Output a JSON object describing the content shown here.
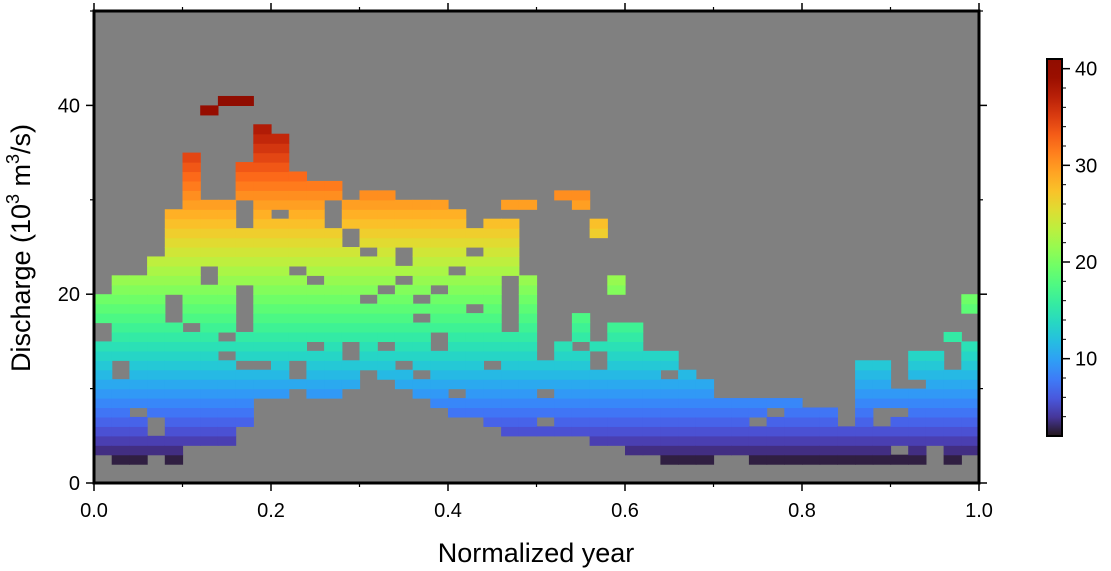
{
  "chart_data": {
    "type": "heatmap",
    "title": "",
    "xlabel": "Normalized year",
    "ylabel_parts": [
      "Discharge (10",
      "3",
      " m",
      "3",
      "/s)"
    ],
    "xlim": [
      0,
      1
    ],
    "ylim": [
      0,
      50
    ],
    "x_ticks": [
      "0.0",
      "0.2",
      "0.4",
      "0.6",
      "0.8",
      "1.0"
    ],
    "x_tick_values": [
      0,
      0.2,
      0.4,
      0.6,
      0.8,
      1.0
    ],
    "y_ticks": [
      "0",
      "20",
      "40"
    ],
    "y_tick_values": [
      0,
      20,
      40
    ],
    "x_bin_width": 0.02,
    "y_bin_width": 1,
    "background_color": "#808080",
    "colorbar": {
      "range": [
        2,
        41
      ],
      "ticks": [
        "10",
        "20",
        "30",
        "40"
      ],
      "tick_values": [
        10,
        20,
        30,
        40
      ],
      "colormap": "turbo"
    },
    "columns": [
      {
        "x": 0.0,
        "ymin": 3,
        "ymax": 20
      },
      {
        "x": 0.02,
        "ymin": 2,
        "ymax": 22
      },
      {
        "x": 0.04,
        "ymin": 2,
        "ymax": 22
      },
      {
        "x": 0.06,
        "ymin": 3,
        "ymax": 24
      },
      {
        "x": 0.08,
        "ymin": 2,
        "ymax": 29
      },
      {
        "x": 0.1,
        "ymin": 4,
        "ymax": 35
      },
      {
        "x": 0.12,
        "ymin": 4,
        "ymax": 40
      },
      {
        "x": 0.14,
        "ymin": 4,
        "ymax": 41
      },
      {
        "x": 0.16,
        "ymin": 6,
        "ymax": 41
      },
      {
        "x": 0.18,
        "ymin": 9,
        "ymax": 41
      },
      {
        "x": 0.2,
        "ymin": 9,
        "ymax": 37
      },
      {
        "x": 0.22,
        "ymin": 10,
        "ymax": 33
      },
      {
        "x": 0.24,
        "ymin": 9,
        "ymax": 32
      },
      {
        "x": 0.26,
        "ymin": 9,
        "ymax": 32
      },
      {
        "x": 0.28,
        "ymin": 10,
        "ymax": 30
      },
      {
        "x": 0.3,
        "ymin": 12,
        "ymax": 31
      },
      {
        "x": 0.32,
        "ymin": 11,
        "ymax": 31
      },
      {
        "x": 0.34,
        "ymin": 10,
        "ymax": 30
      },
      {
        "x": 0.36,
        "ymin": 9,
        "ymax": 30
      },
      {
        "x": 0.38,
        "ymin": 8,
        "ymax": 30
      },
      {
        "x": 0.4,
        "ymin": 7,
        "ymax": 29
      },
      {
        "x": 0.42,
        "ymin": 7,
        "ymax": 27
      },
      {
        "x": 0.44,
        "ymin": 6,
        "ymax": 28
      },
      {
        "x": 0.46,
        "ymin": 5,
        "ymax": 30
      },
      {
        "x": 0.48,
        "ymin": 5,
        "ymax": 30
      },
      {
        "x": 0.5,
        "ymin": 5,
        "ymax": 30
      },
      {
        "x": 0.52,
        "ymin": 5,
        "ymax": 31
      },
      {
        "x": 0.54,
        "ymin": 5,
        "ymax": 31
      },
      {
        "x": 0.56,
        "ymin": 4,
        "ymax": 28
      },
      {
        "x": 0.58,
        "ymin": 4,
        "ymax": 22
      },
      {
        "x": 0.6,
        "ymin": 3,
        "ymax": 17
      },
      {
        "x": 0.62,
        "ymin": 3,
        "ymax": 14
      },
      {
        "x": 0.64,
        "ymin": 2,
        "ymax": 14
      },
      {
        "x": 0.66,
        "ymin": 2,
        "ymax": 12
      },
      {
        "x": 0.68,
        "ymin": 2,
        "ymax": 11
      },
      {
        "x": 0.7,
        "ymin": 3,
        "ymax": 9
      },
      {
        "x": 0.72,
        "ymin": 3,
        "ymax": 9
      },
      {
        "x": 0.74,
        "ymin": 2,
        "ymax": 9
      },
      {
        "x": 0.76,
        "ymin": 2,
        "ymax": 9
      },
      {
        "x": 0.78,
        "ymin": 2,
        "ymax": 9
      },
      {
        "x": 0.8,
        "ymin": 2,
        "ymax": 8
      },
      {
        "x": 0.82,
        "ymin": 2,
        "ymax": 8
      },
      {
        "x": 0.84,
        "ymin": 2,
        "ymax": 7
      },
      {
        "x": 0.86,
        "ymin": 2,
        "ymax": 13
      },
      {
        "x": 0.88,
        "ymin": 2,
        "ymax": 13
      },
      {
        "x": 0.9,
        "ymin": 2,
        "ymax": 10
      },
      {
        "x": 0.92,
        "ymin": 2,
        "ymax": 14
      },
      {
        "x": 0.94,
        "ymin": 3,
        "ymax": 14
      },
      {
        "x": 0.96,
        "ymin": 2,
        "ymax": 16
      },
      {
        "x": 0.98,
        "ymin": 3,
        "ymax": 20
      }
    ],
    "gaps": [
      [
        0.0,
        15
      ],
      [
        0.0,
        16
      ],
      [
        0.02,
        11
      ],
      [
        0.02,
        12
      ],
      [
        0.04,
        7
      ],
      [
        0.06,
        6
      ],
      [
        0.06,
        5
      ],
      [
        0.08,
        17
      ],
      [
        0.08,
        18
      ],
      [
        0.08,
        19
      ],
      [
        0.1,
        16
      ],
      [
        0.12,
        21
      ],
      [
        0.12,
        22
      ],
      [
        0.12,
        30
      ],
      [
        0.12,
        31
      ],
      [
        0.12,
        32
      ],
      [
        0.12,
        33
      ],
      [
        0.12,
        34
      ],
      [
        0.12,
        35
      ],
      [
        0.12,
        36
      ],
      [
        0.12,
        37
      ],
      [
        0.12,
        38
      ],
      [
        0.14,
        13
      ],
      [
        0.14,
        15
      ],
      [
        0.14,
        30
      ],
      [
        0.14,
        31
      ],
      [
        0.14,
        32
      ],
      [
        0.14,
        33
      ],
      [
        0.14,
        34
      ],
      [
        0.14,
        35
      ],
      [
        0.14,
        36
      ],
      [
        0.14,
        37
      ],
      [
        0.14,
        38
      ],
      [
        0.14,
        39
      ],
      [
        0.16,
        12
      ],
      [
        0.16,
        16
      ],
      [
        0.16,
        17
      ],
      [
        0.16,
        18
      ],
      [
        0.16,
        19
      ],
      [
        0.16,
        20
      ],
      [
        0.16,
        27
      ],
      [
        0.16,
        28
      ],
      [
        0.16,
        29
      ],
      [
        0.16,
        34
      ],
      [
        0.16,
        35
      ],
      [
        0.16,
        36
      ],
      [
        0.16,
        37
      ],
      [
        0.16,
        38
      ],
      [
        0.16,
        39
      ],
      [
        0.18,
        12
      ],
      [
        0.18,
        38
      ],
      [
        0.18,
        39
      ],
      [
        0.18,
        40
      ],
      [
        0.2,
        28
      ],
      [
        0.22,
        11
      ],
      [
        0.22,
        12
      ],
      [
        0.22,
        22
      ],
      [
        0.24,
        14
      ],
      [
        0.24,
        21
      ],
      [
        0.26,
        27
      ],
      [
        0.26,
        28
      ],
      [
        0.26,
        29
      ],
      [
        0.28,
        13
      ],
      [
        0.28,
        14
      ],
      [
        0.28,
        25
      ],
      [
        0.28,
        26
      ],
      [
        0.3,
        19
      ],
      [
        0.3,
        24
      ],
      [
        0.32,
        14
      ],
      [
        0.32,
        20
      ],
      [
        0.34,
        12
      ],
      [
        0.34,
        21
      ],
      [
        0.34,
        23
      ],
      [
        0.34,
        24
      ],
      [
        0.36,
        19
      ],
      [
        0.36,
        17
      ],
      [
        0.36,
        11
      ],
      [
        0.38,
        20
      ],
      [
        0.38,
        14
      ],
      [
        0.38,
        15
      ],
      [
        0.4,
        22
      ],
      [
        0.4,
        9
      ],
      [
        0.42,
        18
      ],
      [
        0.42,
        24
      ],
      [
        0.44,
        12
      ],
      [
        0.46,
        16
      ],
      [
        0.46,
        17
      ],
      [
        0.46,
        18
      ],
      [
        0.46,
        19
      ],
      [
        0.46,
        20
      ],
      [
        0.46,
        21
      ],
      [
        0.46,
        28
      ],
      [
        0.48,
        22
      ],
      [
        0.48,
        23
      ],
      [
        0.48,
        24
      ],
      [
        0.48,
        25
      ],
      [
        0.48,
        26
      ],
      [
        0.48,
        27
      ],
      [
        0.48,
        28
      ],
      [
        0.5,
        6
      ],
      [
        0.5,
        9
      ],
      [
        0.5,
        13
      ],
      [
        0.5,
        14
      ],
      [
        0.5,
        15
      ],
      [
        0.5,
        16
      ],
      [
        0.5,
        17
      ],
      [
        0.5,
        18
      ],
      [
        0.5,
        19
      ],
      [
        0.5,
        20
      ],
      [
        0.5,
        21
      ],
      [
        0.5,
        22
      ],
      [
        0.5,
        23
      ],
      [
        0.5,
        24
      ],
      [
        0.5,
        25
      ],
      [
        0.5,
        26
      ],
      [
        0.5,
        27
      ],
      [
        0.5,
        28
      ],
      [
        0.5,
        29
      ],
      [
        0.52,
        15
      ],
      [
        0.52,
        16
      ],
      [
        0.52,
        17
      ],
      [
        0.52,
        18
      ],
      [
        0.52,
        19
      ],
      [
        0.52,
        20
      ],
      [
        0.52,
        21
      ],
      [
        0.52,
        22
      ],
      [
        0.52,
        23
      ],
      [
        0.52,
        24
      ],
      [
        0.52,
        25
      ],
      [
        0.52,
        26
      ],
      [
        0.52,
        27
      ],
      [
        0.52,
        28
      ],
      [
        0.52,
        29
      ],
      [
        0.54,
        14
      ],
      [
        0.54,
        18
      ],
      [
        0.54,
        19
      ],
      [
        0.54,
        20
      ],
      [
        0.54,
        21
      ],
      [
        0.54,
        22
      ],
      [
        0.54,
        23
      ],
      [
        0.54,
        24
      ],
      [
        0.54,
        25
      ],
      [
        0.54,
        26
      ],
      [
        0.54,
        27
      ],
      [
        0.54,
        28
      ],
      [
        0.56,
        12
      ],
      [
        0.56,
        13
      ],
      [
        0.56,
        15
      ],
      [
        0.56,
        16
      ],
      [
        0.56,
        17
      ],
      [
        0.56,
        18
      ],
      [
        0.56,
        19
      ],
      [
        0.56,
        20
      ],
      [
        0.56,
        21
      ],
      [
        0.56,
        22
      ],
      [
        0.56,
        23
      ],
      [
        0.56,
        24
      ],
      [
        0.56,
        25
      ],
      [
        0.58,
        19
      ],
      [
        0.58,
        18
      ],
      [
        0.58,
        17
      ],
      [
        0.64,
        11
      ],
      [
        0.66,
        12
      ],
      [
        0.74,
        6
      ],
      [
        0.76,
        7
      ],
      [
        0.84,
        6
      ],
      [
        0.88,
        6
      ],
      [
        0.88,
        7
      ],
      [
        0.9,
        3
      ],
      [
        0.9,
        7
      ],
      [
        0.92,
        10
      ],
      [
        0.94,
        3
      ],
      [
        0.96,
        12
      ],
      [
        0.96,
        13
      ],
      [
        0.96,
        14
      ],
      [
        0.98,
        15
      ],
      [
        0.98,
        16
      ],
      [
        0.98,
        17
      ]
    ]
  }
}
